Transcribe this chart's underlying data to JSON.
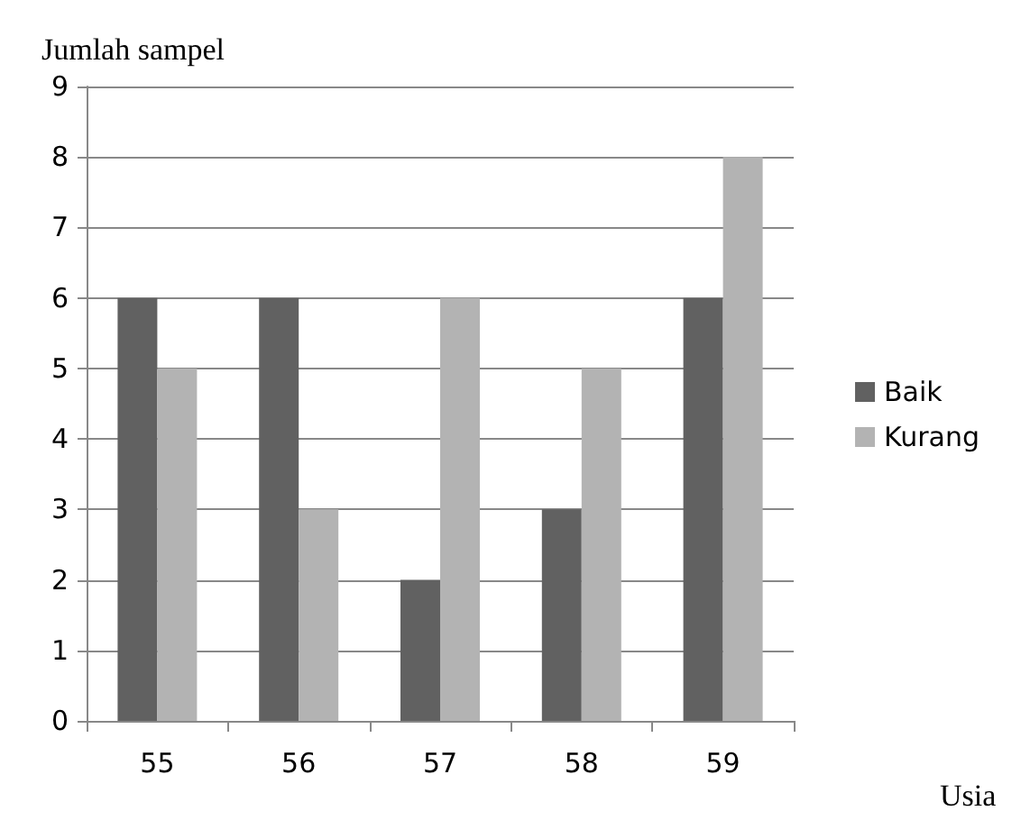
{
  "chart_data": {
    "type": "bar",
    "ylabel": "Jumlah sampel",
    "xlabel": "Usia",
    "categories": [
      "55",
      "56",
      "57",
      "58",
      "59"
    ],
    "series": [
      {
        "name": "Baik",
        "color": "#616161",
        "values": [
          6,
          6,
          2,
          3,
          6
        ]
      },
      {
        "name": "Kurang",
        "color": "#b3b3b3",
        "values": [
          5,
          3,
          6,
          5,
          8
        ]
      }
    ],
    "ylim": [
      0,
      9
    ],
    "yticks": [
      0,
      1,
      2,
      3,
      4,
      5,
      6,
      7,
      8,
      9
    ],
    "grid": "y",
    "legend": "right"
  }
}
